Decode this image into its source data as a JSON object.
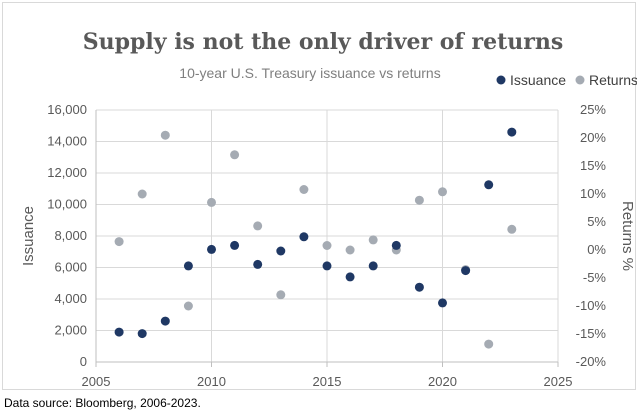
{
  "colors": {
    "issuance": "#1f3864",
    "returns": "#a5abb3"
  },
  "source_note": "Data source: Bloomberg, 2006-2023.",
  "chart_data": {
    "type": "scatter",
    "title": "Supply is not the only driver of returns",
    "subtitle": "10-year U.S. Treasury issuance vs returns",
    "xlabel": "",
    "ylabel": "Issuance",
    "y2label": "Returns %",
    "xlim": [
      2005,
      2025
    ],
    "ylim": [
      0,
      16000
    ],
    "y2lim": [
      -20,
      25
    ],
    "x_ticks": [
      "2005",
      "2010",
      "2015",
      "2020",
      "2025"
    ],
    "x_tick_values": [
      2005,
      2010,
      2015,
      2020,
      2025
    ],
    "y_ticks": [
      "0",
      "2,000",
      "4,000",
      "6,000",
      "8,000",
      "10,000",
      "12,000",
      "14,000",
      "16,000"
    ],
    "y_tick_values": [
      0,
      2000,
      4000,
      6000,
      8000,
      10000,
      12000,
      14000,
      16000
    ],
    "y2_ticks": [
      "-20%",
      "-15%",
      "-10%",
      "-5%",
      "0%",
      "5%",
      "10%",
      "15%",
      "20%",
      "25%"
    ],
    "y2_tick_values": [
      -20,
      -15,
      -10,
      -5,
      0,
      5,
      10,
      15,
      20,
      25
    ],
    "grid": true,
    "legend_position": "top-right",
    "series": [
      {
        "name": "Issuance",
        "axis": "left",
        "x": [
          2006,
          2007,
          2008,
          2009,
          2010,
          2011,
          2012,
          2013,
          2014,
          2015,
          2016,
          2017,
          2018,
          2019,
          2020,
          2021,
          2022,
          2023
        ],
        "y": [
          1900,
          1800,
          2600,
          6100,
          7150,
          7400,
          6200,
          7050,
          7950,
          6100,
          5400,
          6100,
          7400,
          4750,
          3750,
          5800,
          11250,
          14600
        ]
      },
      {
        "name": "Returns",
        "axis": "right",
        "x": [
          2006,
          2007,
          2008,
          2009,
          2010,
          2011,
          2012,
          2013,
          2014,
          2015,
          2016,
          2017,
          2018,
          2019,
          2020,
          2021,
          2022,
          2023
        ],
        "y": [
          1.5,
          10.0,
          20.5,
          -10.0,
          8.5,
          17.0,
          4.3,
          -8.0,
          10.8,
          0.8,
          0.0,
          1.8,
          0.0,
          8.9,
          10.4,
          -3.5,
          -16.8,
          3.7
        ]
      }
    ]
  }
}
